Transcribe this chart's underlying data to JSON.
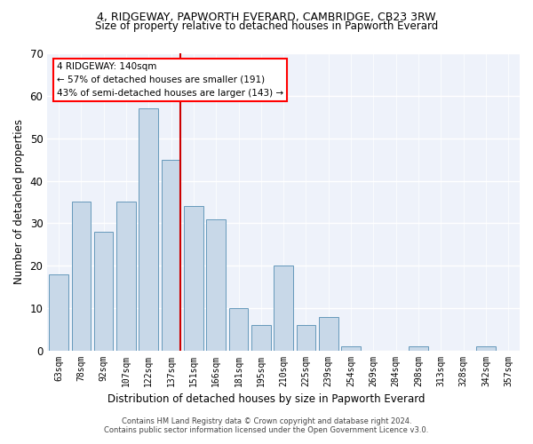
{
  "title": "4, RIDGEWAY, PAPWORTH EVERARD, CAMBRIDGE, CB23 3RW",
  "subtitle": "Size of property relative to detached houses in Papworth Everard",
  "xlabel": "Distribution of detached houses by size in Papworth Everard",
  "ylabel": "Number of detached properties",
  "categories": [
    "63sqm",
    "78sqm",
    "92sqm",
    "107sqm",
    "122sqm",
    "137sqm",
    "151sqm",
    "166sqm",
    "181sqm",
    "195sqm",
    "210sqm",
    "225sqm",
    "239sqm",
    "254sqm",
    "269sqm",
    "284sqm",
    "298sqm",
    "313sqm",
    "328sqm",
    "342sqm",
    "357sqm"
  ],
  "values": [
    18,
    35,
    28,
    35,
    57,
    45,
    34,
    31,
    10,
    6,
    20,
    6,
    8,
    1,
    0,
    0,
    1,
    0,
    0,
    1,
    0
  ],
  "bar_color": "#c8d8e8",
  "bar_edge_color": "#6699bb",
  "vline_index": 5,
  "marker_label": "4 RIDGEWAY: 140sqm",
  "annotation_line1": "← 57% of detached houses are smaller (191)",
  "annotation_line2": "43% of semi-detached houses are larger (143) →",
  "annotation_box_color": "white",
  "annotation_box_edge_color": "red",
  "vline_color": "#cc0000",
  "ylim": [
    0,
    70
  ],
  "yticks": [
    0,
    10,
    20,
    30,
    40,
    50,
    60,
    70
  ],
  "background_color": "#eef2fa",
  "grid_color": "#ffffff",
  "title_fontsize": 9,
  "subtitle_fontsize": 8.5,
  "footer1": "Contains HM Land Registry data © Crown copyright and database right 2024.",
  "footer2": "Contains public sector information licensed under the Open Government Licence v3.0."
}
